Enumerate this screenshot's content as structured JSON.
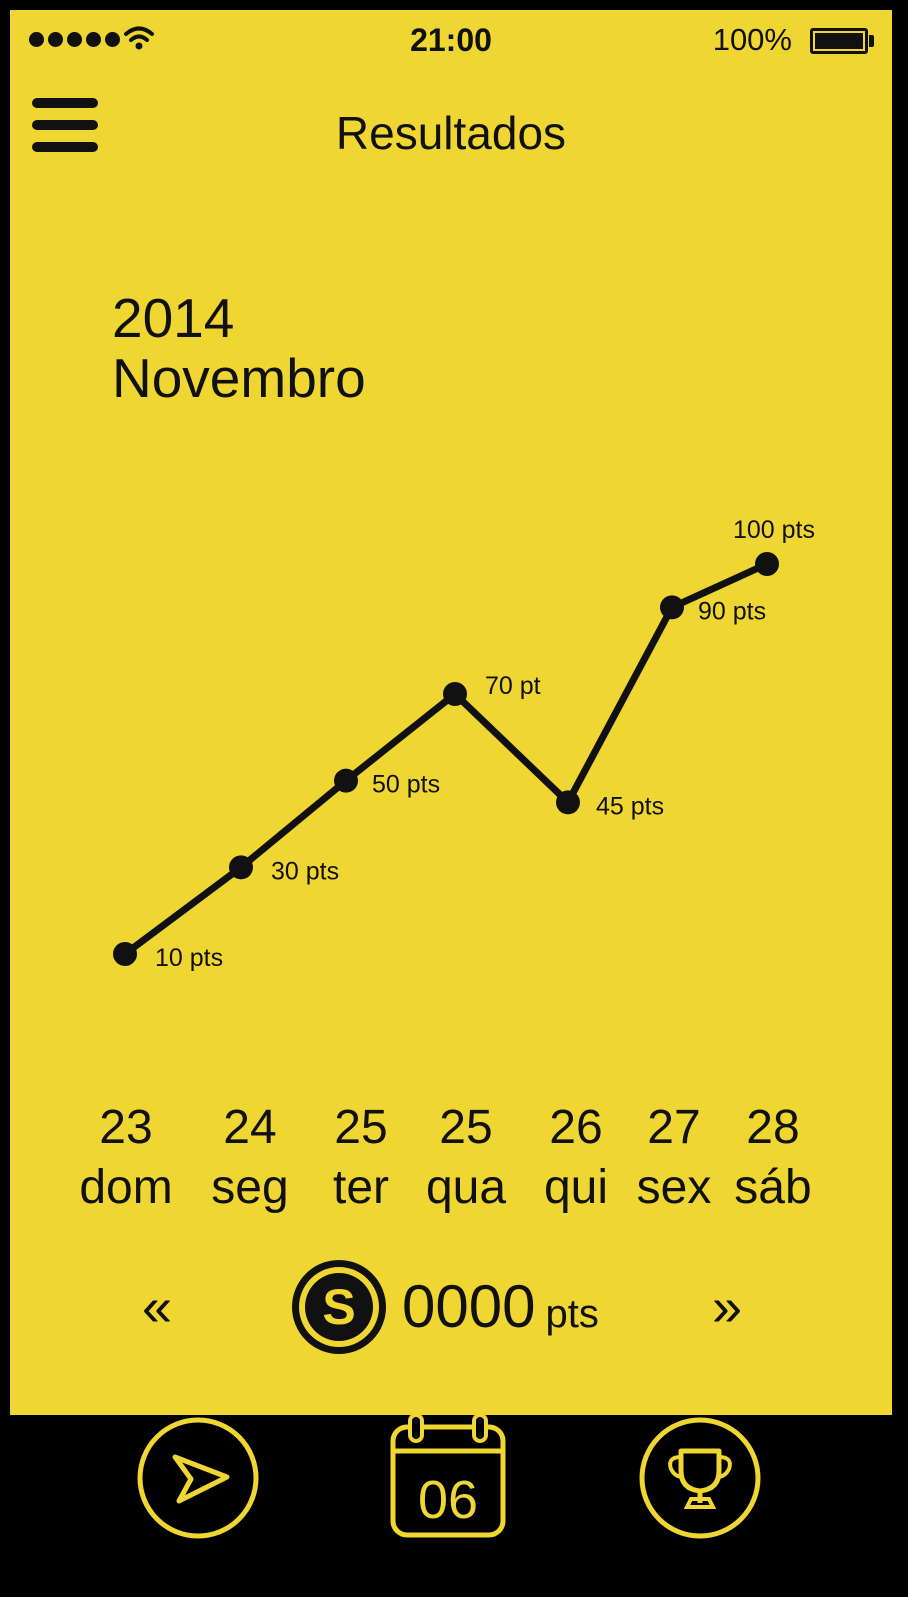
{
  "status_bar": {
    "time": "21:00",
    "battery": "100%",
    "signal_icon": "signal-dots-icon",
    "wifi_icon": "wifi-icon"
  },
  "nav": {
    "title": "Resultados",
    "menu_icon": "hamburger-menu-icon"
  },
  "period": {
    "year": "2014",
    "month": "Novembro"
  },
  "chart_data": {
    "type": "line",
    "title": "",
    "xlabel": "",
    "ylabel": "",
    "x": [
      "23 dom",
      "24 seg",
      "25 ter",
      "25 qua",
      "26 qui",
      "27 sex",
      "28 sáb"
    ],
    "series": [
      {
        "values": [
          10,
          30,
          50,
          70,
          45,
          90,
          100
        ]
      }
    ],
    "labels": [
      "10 pts",
      "30 pts",
      "50 pts",
      "70 pt",
      "45 pts",
      "90 pts",
      "100 pts"
    ],
    "ylim": [
      10,
      100
    ],
    "grid": false,
    "colors": {
      "line": "#111111",
      "background": "#F0D633"
    }
  },
  "days": [
    {
      "num": "23",
      "name": "dom"
    },
    {
      "num": "24",
      "name": "seg"
    },
    {
      "num": "25",
      "name": "ter"
    },
    {
      "num": "25",
      "name": "qua"
    },
    {
      "num": "26",
      "name": "qui"
    },
    {
      "num": "27",
      "name": "sex"
    },
    {
      "num": "28",
      "name": "sáb"
    }
  ],
  "score": {
    "prev": "«",
    "next": "»",
    "coin_letter": "S",
    "value": "0000",
    "unit": "pts"
  },
  "tabbar": {
    "send_icon": "send-paper-plane-icon",
    "calendar_icon": "calendar-icon",
    "calendar_day": "06",
    "trophy_icon": "trophy-icon"
  },
  "colors": {
    "accent": "#F0D633",
    "dark": "#111111"
  }
}
